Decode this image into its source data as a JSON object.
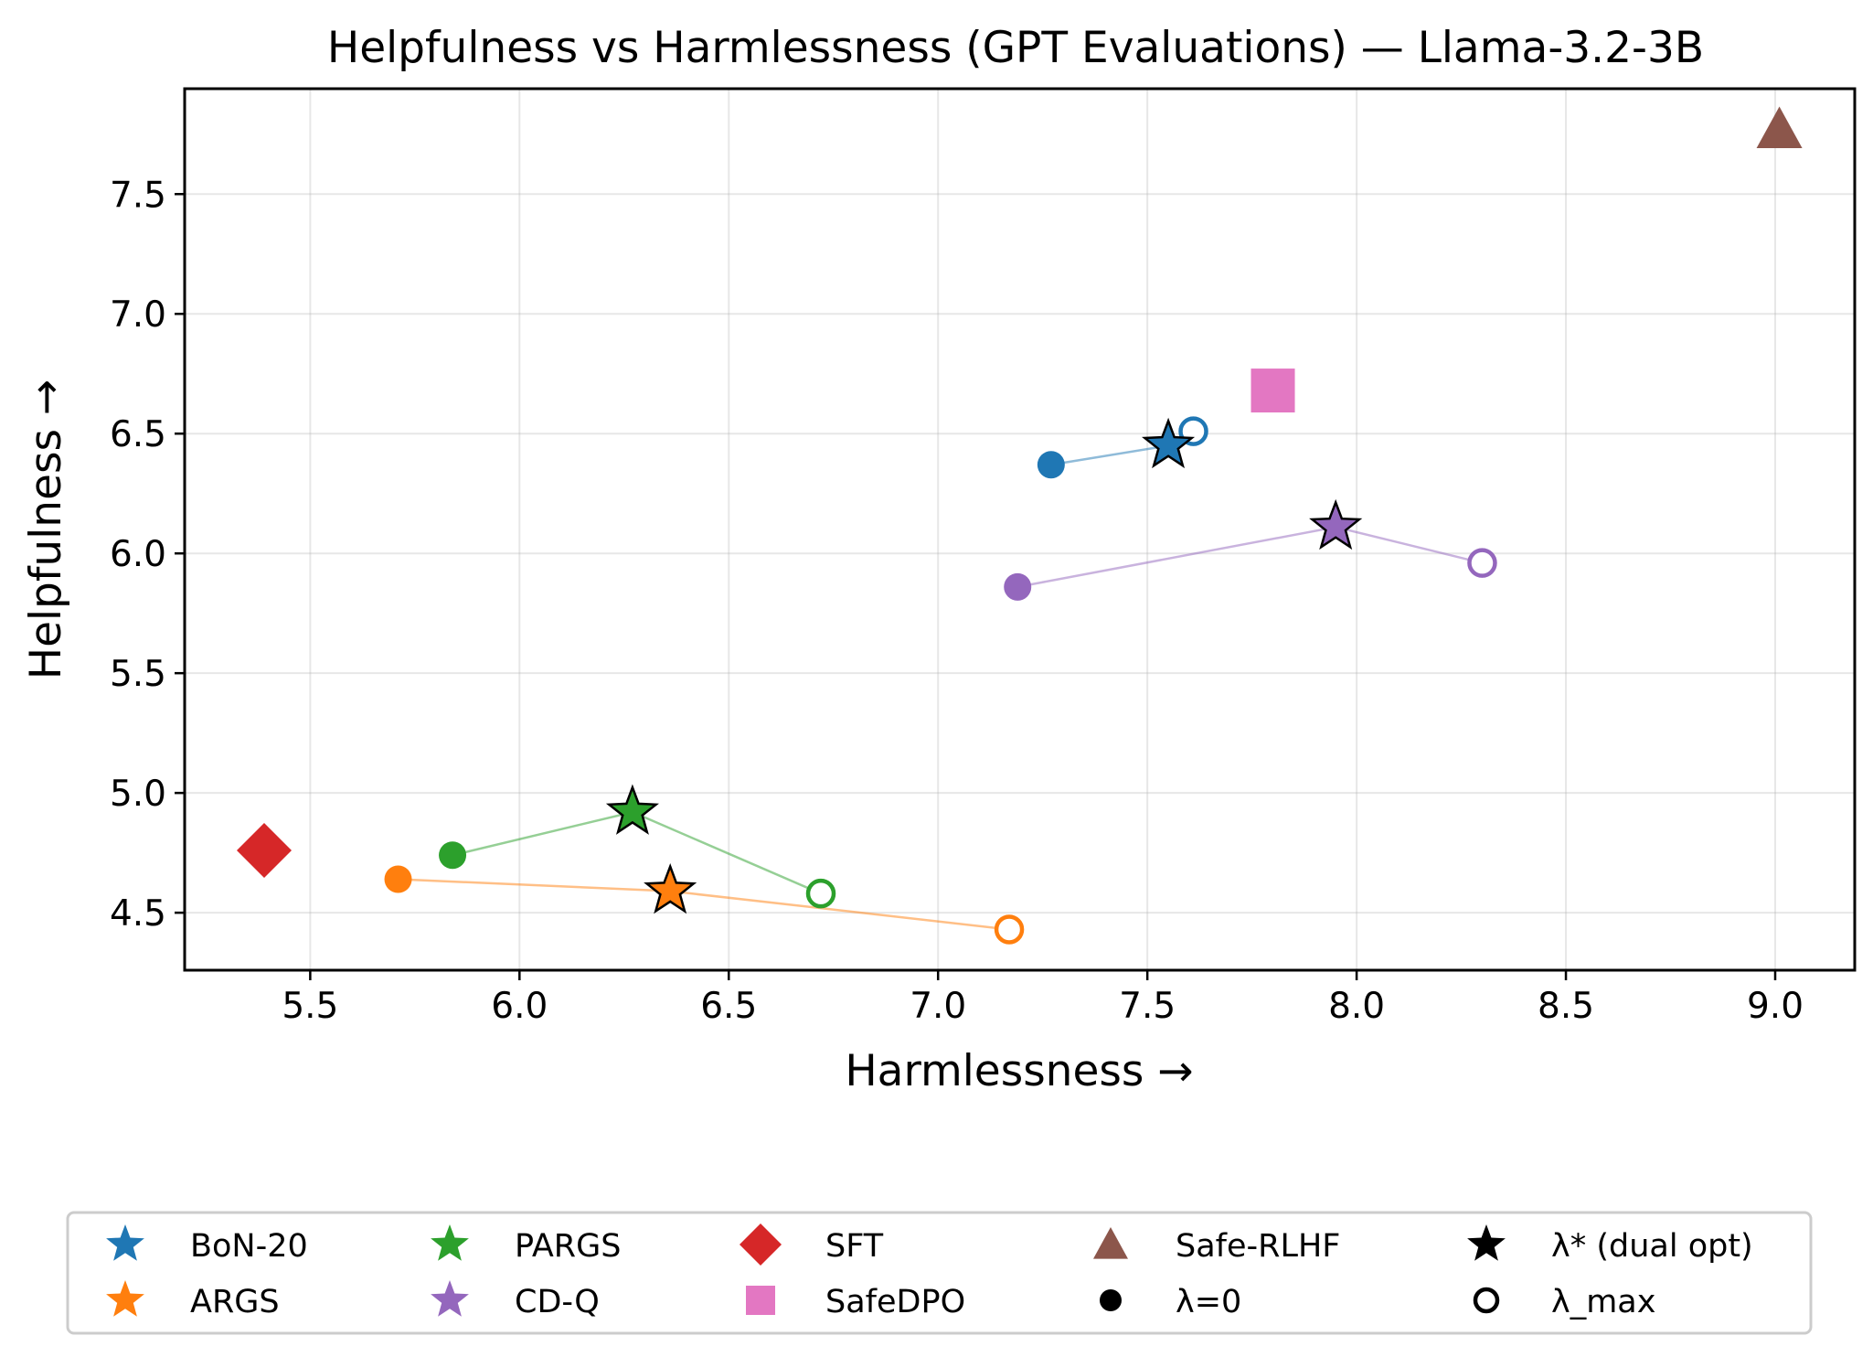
{
  "chart_data": {
    "type": "scatter",
    "title": "Helpfulness vs Harmlessness (GPT Evaluations) — Llama-3.2-3B",
    "xlabel": "Harmlessness →",
    "ylabel": "Helpfulness →",
    "xlim": [
      5.2,
      9.19
    ],
    "ylim": [
      4.26,
      7.94
    ],
    "xticks": [
      "5.5",
      "6.0",
      "6.5",
      "7.0",
      "7.5",
      "8.0",
      "8.5",
      "9.0"
    ],
    "yticks": [
      "4.5",
      "5.0",
      "5.5",
      "6.0",
      "6.5",
      "7.0",
      "7.5"
    ],
    "grid": true,
    "legend_position": "bottom",
    "series": [
      {
        "name": "BoN-20",
        "color": "#1f77b4",
        "lambda0": [
          7.27,
          6.37
        ],
        "lambda_star": [
          7.55,
          6.45
        ],
        "lambda_max": [
          7.61,
          6.51
        ]
      },
      {
        "name": "ARGS",
        "color": "#ff7f0e",
        "lambda0": [
          5.71,
          4.64
        ],
        "lambda_star": [
          6.36,
          4.59
        ],
        "lambda_max": [
          7.17,
          4.43
        ]
      },
      {
        "name": "PARGS",
        "color": "#2ca02c",
        "lambda0": [
          5.84,
          4.74
        ],
        "lambda_star": [
          6.27,
          4.92
        ],
        "lambda_max": [
          6.72,
          4.58
        ]
      },
      {
        "name": "CD-Q",
        "color": "#9467bd",
        "lambda0": [
          7.19,
          5.86
        ],
        "lambda_star": [
          7.95,
          6.11
        ],
        "lambda_max": [
          8.3,
          5.96
        ]
      }
    ],
    "baselines": [
      {
        "name": "SFT",
        "color": "#d62728",
        "marker": "diamond",
        "x": 5.39,
        "y": 4.76
      },
      {
        "name": "SafeDPO",
        "color": "#e377c2",
        "marker": "square",
        "x": 7.8,
        "y": 6.68
      },
      {
        "name": "Safe-RLHF",
        "color": "#8c564b",
        "marker": "triangle",
        "x": 9.01,
        "y": 7.77
      }
    ],
    "legend": [
      {
        "label": "BoN-20",
        "marker": "star",
        "color": "#1f77b4"
      },
      {
        "label": "ARGS",
        "marker": "star",
        "color": "#ff7f0e"
      },
      {
        "label": "PARGS",
        "marker": "star",
        "color": "#2ca02c"
      },
      {
        "label": "CD-Q",
        "marker": "star",
        "color": "#9467bd"
      },
      {
        "label": "SFT",
        "marker": "diamond",
        "color": "#d62728"
      },
      {
        "label": "SafeDPO",
        "marker": "square",
        "color": "#e377c2"
      },
      {
        "label": "Safe-RLHF",
        "marker": "triangle",
        "color": "#8c564b"
      },
      {
        "label": "λ=0",
        "marker": "circle-filled",
        "color": "#000000"
      },
      {
        "label": "λ* (dual opt)",
        "marker": "star",
        "color": "#000000"
      },
      {
        "label": "λ_max",
        "marker": "circle-open",
        "color": "#000000"
      }
    ]
  }
}
